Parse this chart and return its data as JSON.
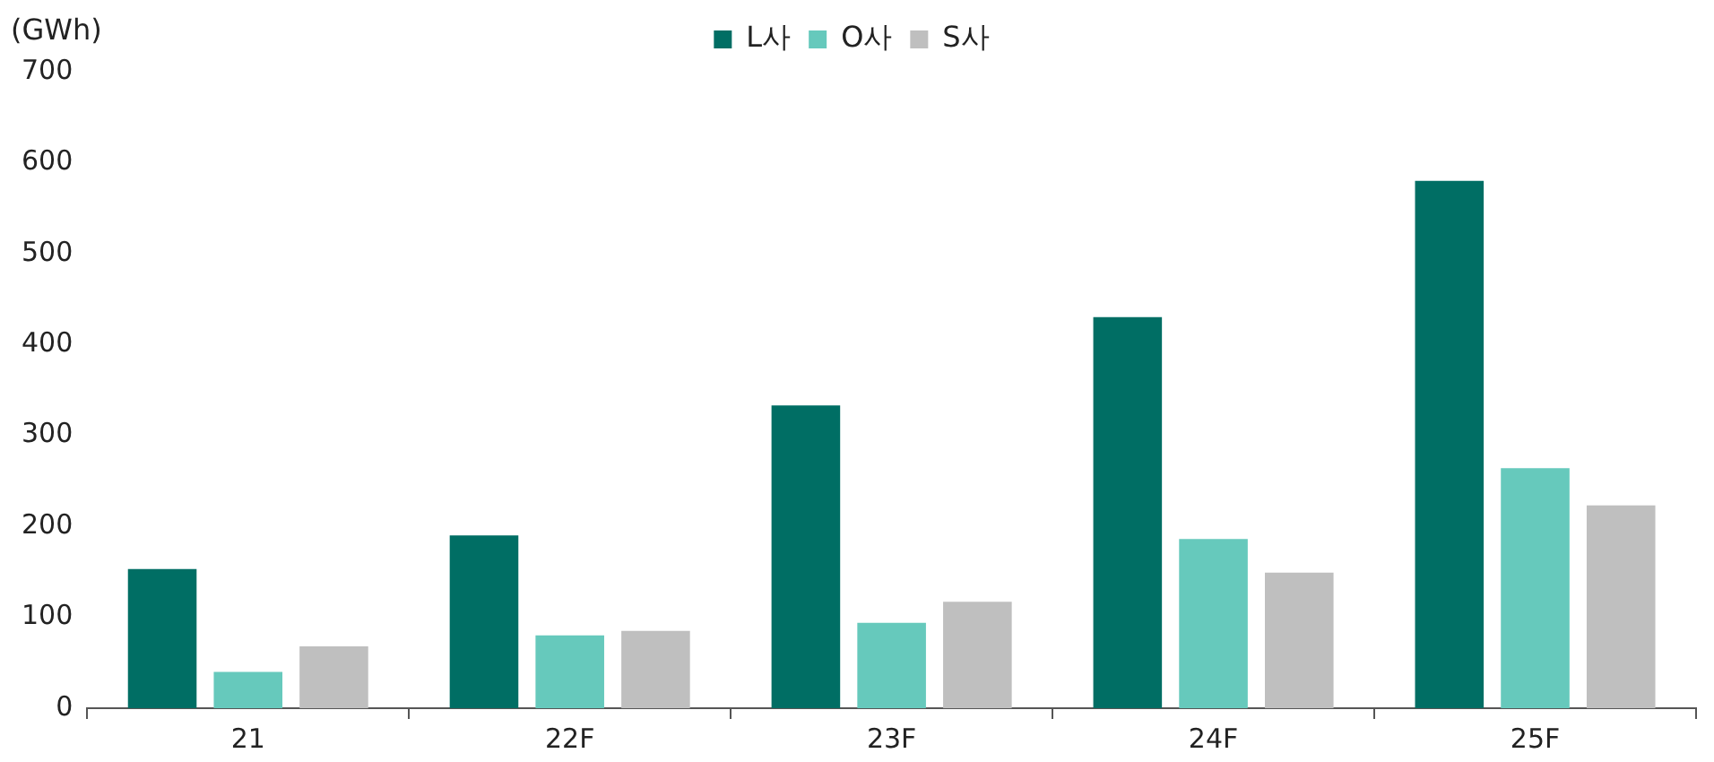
{
  "chart_data": {
    "type": "bar",
    "ylabel": "(GWh)",
    "categories": [
      "21",
      "22F",
      "23F",
      "24F",
      "25F"
    ],
    "series": [
      {
        "name": "L사",
        "color": "#006e64",
        "values": [
          153,
          190,
          333,
          430,
          580
        ]
      },
      {
        "name": "O사",
        "color": "#66c9bc",
        "values": [
          40,
          80,
          94,
          186,
          264
        ]
      },
      {
        "name": "S사",
        "color": "#bfbfbf",
        "values": [
          68,
          85,
          117,
          149,
          223
        ]
      }
    ],
    "ylim": [
      0,
      700
    ],
    "yticks": [
      0,
      100,
      200,
      300,
      400,
      500,
      600,
      700
    ],
    "grid": false,
    "legend": "top"
  }
}
